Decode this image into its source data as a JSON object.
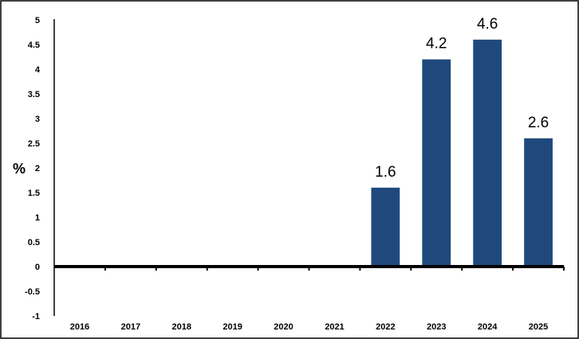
{
  "chart_data": {
    "type": "bar",
    "categories": [
      "2016",
      "2017",
      "2018",
      "2019",
      "2020",
      "2021",
      "2022",
      "2023",
      "2024",
      "2025"
    ],
    "values": [
      0,
      0,
      0,
      0,
      0,
      0,
      1.6,
      4.2,
      4.6,
      2.6
    ],
    "data_labels": [
      "",
      "",
      "",
      "",
      "",
      "",
      "1.6",
      "4.2",
      "4.6",
      "2.6"
    ],
    "ylabel": "%",
    "ylim": [
      -1,
      5
    ],
    "yticks": [
      "-1",
      "-0.5",
      "0",
      "0.5",
      "1",
      "1.5",
      "2",
      "2.5",
      "3",
      "3.5",
      "4",
      "4.5",
      "5"
    ],
    "bar_color": "#1f497d",
    "grid": false,
    "legend": "none"
  }
}
